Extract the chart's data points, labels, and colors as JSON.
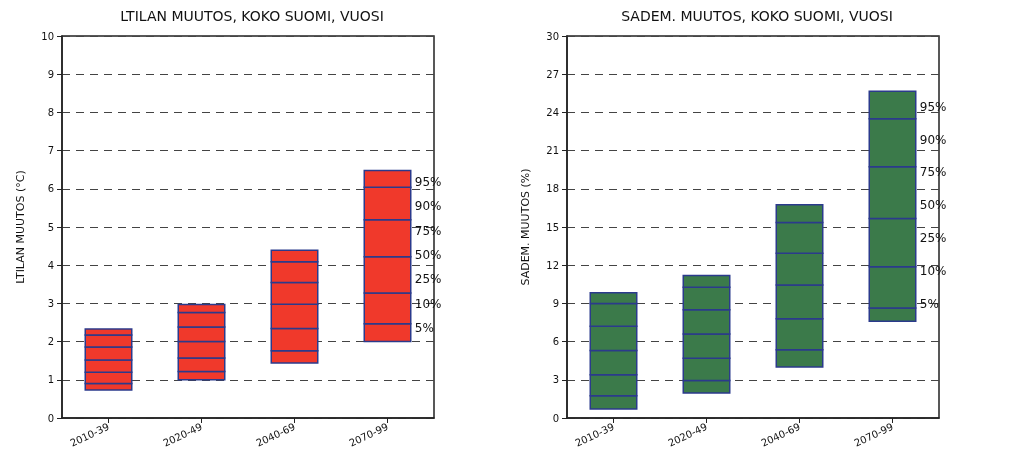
{
  "chart_data": [
    {
      "type": "bar",
      "title": "LTILAN MUUTOS, KOKO SUOMI, VUOSI",
      "ylabel": "LTILAN MUUTOS (°C)",
      "categories": [
        "2010-39",
        "2020-49",
        "2040-69",
        "2070-99"
      ],
      "series": [
        {
          "color": "#f0392b",
          "base": [
            0.73,
            1.0,
            1.44,
            2.0
          ],
          "values": [
            0.17,
            0.22,
            0.32,
            0.47
          ]
        },
        {
          "color": "#f0392b",
          "base": [
            0.9,
            1.22,
            1.76,
            2.47
          ],
          "values": [
            0.3,
            0.35,
            0.58,
            0.8
          ]
        },
        {
          "color": "#f0392b",
          "base": [
            1.2,
            1.57,
            2.34,
            3.27
          ],
          "values": [
            0.32,
            0.43,
            0.64,
            0.95
          ]
        },
        {
          "color": "#f0392b",
          "base": [
            1.52,
            2.0,
            2.98,
            4.22
          ],
          "values": [
            0.34,
            0.38,
            0.57,
            0.97
          ]
        },
        {
          "color": "#f0392b",
          "base": [
            1.86,
            2.38,
            3.55,
            5.19
          ],
          "values": [
            0.31,
            0.38,
            0.54,
            0.85
          ]
        },
        {
          "color": "#f0392b",
          "base": [
            2.17,
            2.76,
            4.09,
            6.04
          ],
          "values": [
            0.16,
            0.21,
            0.3,
            0.44
          ]
        }
      ],
      "annotations": [
        "95%",
        "90%",
        "75%",
        "50%",
        "25%",
        "10%",
        "5%"
      ],
      "ylim": [
        0,
        10
      ],
      "yticks": [
        0,
        1,
        2,
        3,
        4,
        5,
        6,
        7,
        8,
        9,
        10
      ],
      "grid": "y",
      "line_style": "dashed"
    },
    {
      "type": "bar",
      "title": "SADEM. MUUTOS, KOKO SUOMI, VUOSI",
      "ylabel": "SADEM. MUUTOS (%)",
      "categories": [
        "2010-39",
        "2020-49",
        "2040-69",
        "2070-99"
      ],
      "series": [
        {
          "color": "#3b7a4a",
          "base": [
            0.7,
            1.96,
            4.0,
            7.6
          ],
          "values": [
            1.04,
            0.99,
            1.36,
            1.03
          ]
        },
        {
          "color": "#3b7a4a",
          "base": [
            1.74,
            2.95,
            5.36,
            8.63
          ],
          "values": [
            1.66,
            1.75,
            2.44,
            3.24
          ]
        },
        {
          "color": "#3b7a4a",
          "base": [
            3.4,
            4.7,
            7.8,
            11.87
          ],
          "values": [
            1.9,
            1.9,
            2.65,
            3.8
          ]
        },
        {
          "color": "#3b7a4a",
          "base": [
            5.3,
            6.6,
            10.45,
            15.67
          ],
          "values": [
            1.9,
            1.9,
            2.49,
            4.07
          ]
        },
        {
          "color": "#3b7a4a",
          "base": [
            7.2,
            8.5,
            12.94,
            19.74
          ],
          "values": [
            1.8,
            1.76,
            2.41,
            3.76
          ]
        },
        {
          "color": "#3b7a4a",
          "base": [
            9.0,
            10.26,
            15.35,
            23.5
          ],
          "values": [
            0.83,
            0.94,
            1.39,
            2.16
          ]
        }
      ],
      "annotations": [
        "95%",
        "90%",
        "75%",
        "50%",
        "25%",
        "10%",
        "5%"
      ],
      "ylim": [
        0,
        30
      ],
      "yticks": [
        0,
        3,
        6,
        9,
        12,
        15,
        18,
        21,
        24,
        27,
        30
      ],
      "grid": "y",
      "line_style": "dashed"
    }
  ]
}
